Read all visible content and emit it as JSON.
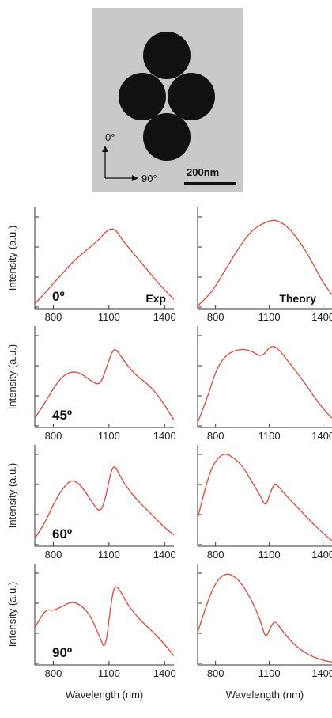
{
  "tem_image": {
    "angle_up": "0°",
    "angle_right": "90°",
    "scale_bar": "200nm"
  },
  "panel_tags": {
    "exp": "Exp",
    "theory": "Theory"
  },
  "colors": {
    "curve": "#e8443a",
    "axis": "#333333",
    "tem_bg": "#c9c9c9",
    "particle": "#111111"
  },
  "chart_data": [
    {
      "type": "line",
      "panel": "Exp 0°",
      "annotation": "0º",
      "ylabel": "Intensity (a.u.)",
      "xlim": [
        700,
        1450
      ],
      "xticks": [
        800,
        1100,
        1400
      ],
      "ylim": [
        0,
        1
      ],
      "series": [
        {
          "x": [
            700,
            760,
            800,
            850,
            900,
            950,
            1000,
            1050,
            1080,
            1110,
            1140,
            1170,
            1200,
            1250,
            1300,
            1350,
            1400,
            1450
          ],
          "y": [
            0.05,
            0.18,
            0.27,
            0.38,
            0.49,
            0.58,
            0.66,
            0.75,
            0.82,
            0.86,
            0.84,
            0.74,
            0.67,
            0.55,
            0.43,
            0.31,
            0.2,
            0.1
          ]
        }
      ]
    },
    {
      "type": "line",
      "panel": "Theory 0°",
      "annotation": "",
      "xlim": [
        700,
        1450
      ],
      "xticks": [
        800,
        1100,
        1400
      ],
      "ylim": [
        0,
        1
      ],
      "series": [
        {
          "x": [
            700,
            760,
            800,
            850,
            900,
            950,
            1000,
            1050,
            1100,
            1130,
            1160,
            1200,
            1250,
            1300,
            1350,
            1400,
            1450
          ],
          "y": [
            0.03,
            0.14,
            0.24,
            0.4,
            0.56,
            0.71,
            0.83,
            0.9,
            0.94,
            0.95,
            0.93,
            0.88,
            0.77,
            0.63,
            0.46,
            0.28,
            0.15
          ]
        }
      ]
    },
    {
      "type": "line",
      "panel": "Exp 45°",
      "annotation": "45º",
      "ylabel": "Intensity (a.u.)",
      "xlim": [
        700,
        1450
      ],
      "xticks": [
        800,
        1100,
        1400
      ],
      "ylim": [
        0,
        1
      ],
      "series": [
        {
          "x": [
            700,
            760,
            800,
            850,
            900,
            950,
            1000,
            1050,
            1080,
            1110,
            1130,
            1160,
            1200,
            1250,
            1300,
            1350,
            1400,
            1450
          ],
          "y": [
            0.1,
            0.28,
            0.42,
            0.55,
            0.6,
            0.58,
            0.5,
            0.45,
            0.6,
            0.78,
            0.85,
            0.78,
            0.66,
            0.55,
            0.48,
            0.38,
            0.24,
            0.08
          ]
        }
      ]
    },
    {
      "type": "line",
      "panel": "Theory 45°",
      "annotation": "",
      "xlim": [
        700,
        1450
      ],
      "xticks": [
        800,
        1100,
        1400
      ],
      "ylim": [
        0,
        1
      ],
      "series": [
        {
          "x": [
            700,
            760,
            800,
            850,
            900,
            950,
            1000,
            1050,
            1080,
            1100,
            1130,
            1160,
            1200,
            1250,
            1300,
            1350,
            1400,
            1450
          ],
          "y": [
            0.05,
            0.35,
            0.6,
            0.76,
            0.82,
            0.84,
            0.82,
            0.76,
            0.8,
            0.86,
            0.87,
            0.82,
            0.72,
            0.6,
            0.47,
            0.33,
            0.2,
            0.1
          ]
        }
      ]
    },
    {
      "type": "line",
      "panel": "Exp 60°",
      "annotation": "60º",
      "ylabel": "Intensity (a.u.)",
      "xlim": [
        700,
        1450
      ],
      "xticks": [
        800,
        1100,
        1400
      ],
      "ylim": [
        0,
        1
      ],
      "series": [
        {
          "x": [
            700,
            760,
            800,
            850,
            900,
            950,
            1000,
            1050,
            1080,
            1110,
            1130,
            1160,
            1200,
            1250,
            1300,
            1350,
            1400,
            1450
          ],
          "y": [
            0.08,
            0.27,
            0.45,
            0.62,
            0.72,
            0.65,
            0.5,
            0.35,
            0.5,
            0.8,
            0.87,
            0.75,
            0.62,
            0.5,
            0.4,
            0.3,
            0.2,
            0.12
          ]
        }
      ]
    },
    {
      "type": "line",
      "panel": "Theory 60°",
      "annotation": "",
      "xlim": [
        700,
        1450
      ],
      "xticks": [
        800,
        1100,
        1400
      ],
      "ylim": [
        0,
        1
      ],
      "series": [
        {
          "x": [
            700,
            760,
            800,
            850,
            900,
            950,
            1000,
            1050,
            1080,
            1100,
            1130,
            1160,
            1200,
            1250,
            1300,
            1350,
            1400,
            1450
          ],
          "y": [
            0.3,
            0.75,
            0.92,
            1.0,
            0.95,
            0.86,
            0.7,
            0.54,
            0.42,
            0.55,
            0.68,
            0.62,
            0.53,
            0.43,
            0.33,
            0.23,
            0.14,
            0.06
          ]
        }
      ]
    },
    {
      "type": "line",
      "panel": "Exp 90°",
      "annotation": "90º",
      "ylabel": "Intensity (a.u.)",
      "xlim": [
        700,
        1450
      ],
      "xticks": [
        800,
        1100,
        1400
      ],
      "ylim": [
        0,
        1
      ],
      "series": [
        {
          "x": [
            700,
            760,
            800,
            850,
            900,
            950,
            1000,
            1050,
            1080,
            1110,
            1130,
            1160,
            1200,
            1250,
            1300,
            1350,
            1400,
            1450
          ],
          "y": [
            0.4,
            0.6,
            0.58,
            0.63,
            0.68,
            0.64,
            0.53,
            0.3,
            0.15,
            0.65,
            0.86,
            0.8,
            0.65,
            0.52,
            0.42,
            0.33,
            0.22,
            0.1
          ]
        }
      ]
    },
    {
      "type": "line",
      "panel": "Theory 90°",
      "annotation": "",
      "xlim": [
        700,
        1450
      ],
      "xticks": [
        800,
        1100,
        1400
      ],
      "ylim": [
        0,
        1
      ],
      "series": [
        {
          "x": [
            700,
            760,
            800,
            850,
            900,
            950,
            1000,
            1050,
            1080,
            1100,
            1130,
            1160,
            1200,
            1250,
            1300,
            1350,
            1400,
            1450
          ],
          "y": [
            0.35,
            0.7,
            0.88,
            0.98,
            0.96,
            0.86,
            0.7,
            0.48,
            0.28,
            0.38,
            0.48,
            0.4,
            0.3,
            0.2,
            0.13,
            0.08,
            0.05,
            0.03
          ]
        }
      ]
    }
  ],
  "xlabel": "Wavelength (nm)"
}
